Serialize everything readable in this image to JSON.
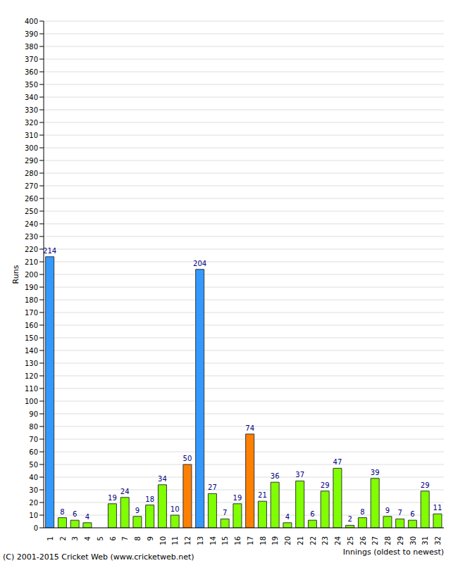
{
  "chart_data": {
    "type": "bar",
    "ylabel": "Runs",
    "xlabel": "Innings (oldest to newest)",
    "annotations": [
      "(C) 2001-2015 Cricket Web (www.cricketweb.net)"
    ],
    "categories": [
      "1",
      "2",
      "3",
      "4",
      "5",
      "6",
      "7",
      "8",
      "9",
      "10",
      "11",
      "12",
      "13",
      "14",
      "15",
      "16",
      "17",
      "18",
      "19",
      "20",
      "21",
      "22",
      "23",
      "24",
      "25",
      "26",
      "27",
      "28",
      "29",
      "30",
      "31",
      "32"
    ],
    "values": [
      214,
      8,
      6,
      4,
      0,
      19,
      24,
      9,
      18,
      34,
      10,
      50,
      204,
      27,
      7,
      19,
      74,
      21,
      36,
      4,
      37,
      6,
      29,
      47,
      2,
      8,
      39,
      9,
      7,
      6,
      29,
      11
    ],
    "colors": [
      "#3399ff",
      "#80ff00",
      "#80ff00",
      "#80ff00",
      "#80ff00",
      "#80ff00",
      "#80ff00",
      "#80ff00",
      "#80ff00",
      "#80ff00",
      "#80ff00",
      "#ff8000",
      "#3399ff",
      "#80ff00",
      "#80ff00",
      "#80ff00",
      "#ff8000",
      "#80ff00",
      "#80ff00",
      "#80ff00",
      "#80ff00",
      "#80ff00",
      "#80ff00",
      "#80ff00",
      "#80ff00",
      "#80ff00",
      "#80ff00",
      "#80ff00",
      "#80ff00",
      "#80ff00",
      "#80ff00",
      "#80ff00"
    ],
    "ylim": [
      0,
      400
    ],
    "yticks": [
      0,
      10,
      20,
      30,
      40,
      50,
      60,
      70,
      80,
      90,
      100,
      110,
      120,
      130,
      140,
      150,
      160,
      170,
      180,
      190,
      200,
      210,
      220,
      230,
      240,
      250,
      260,
      270,
      280,
      290,
      300,
      310,
      320,
      330,
      340,
      350,
      360,
      370,
      380,
      390,
      400
    ],
    "grid": true,
    "data_labels": true
  }
}
